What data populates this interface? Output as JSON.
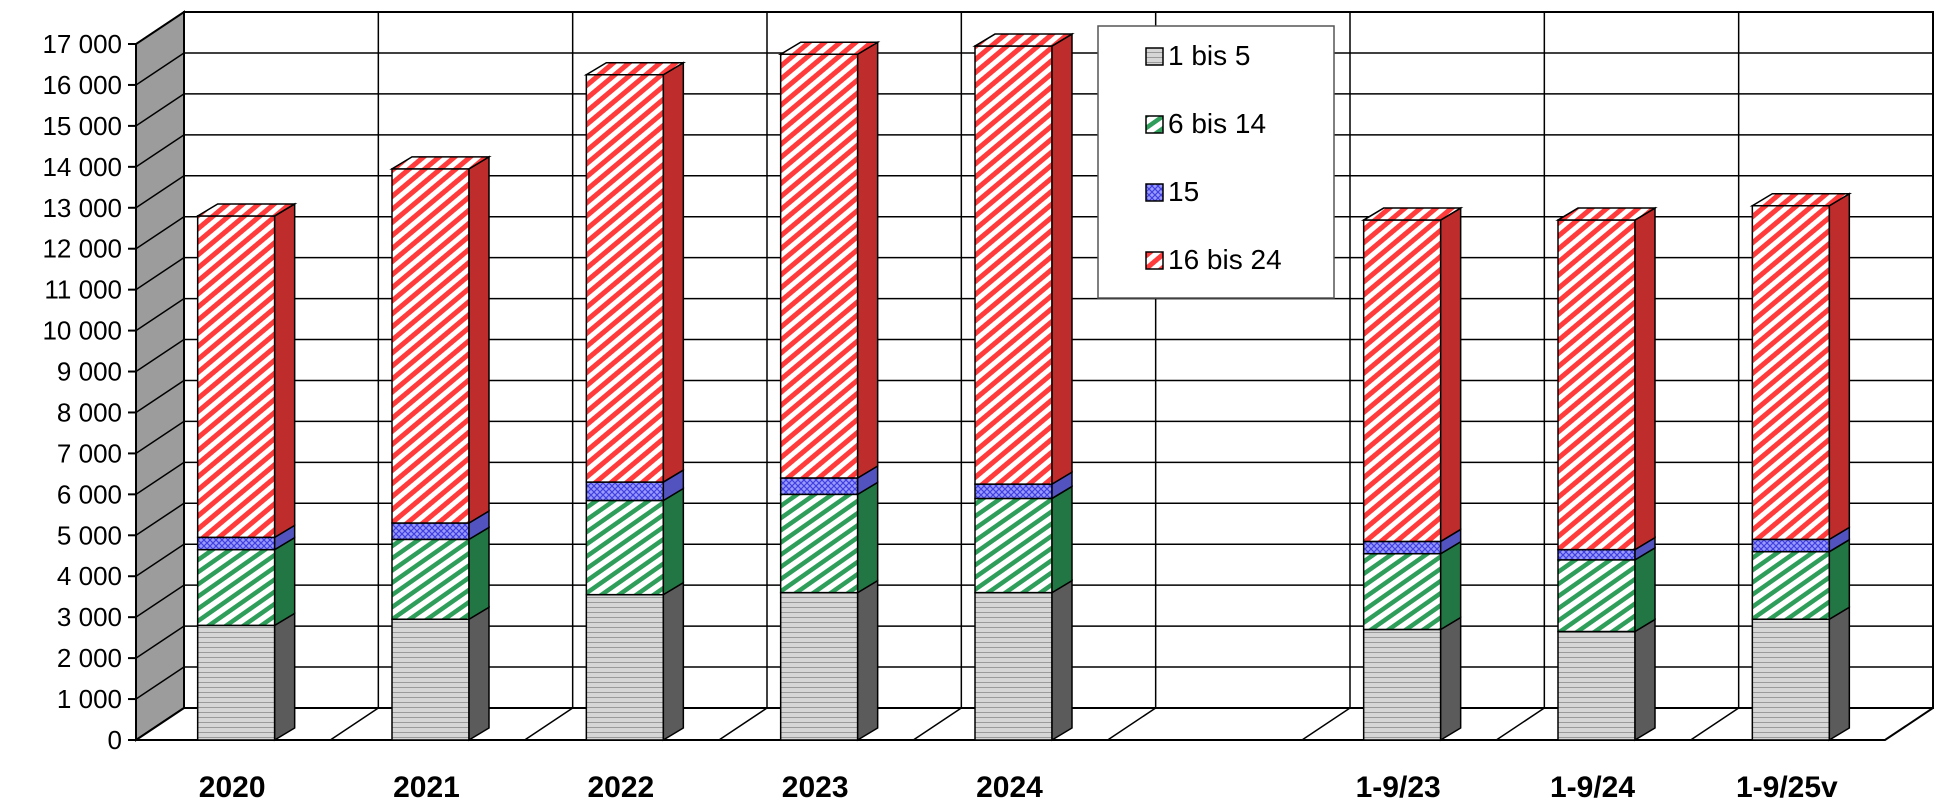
{
  "chart_data": {
    "type": "bar",
    "stacked": true,
    "style": "3d",
    "categories": [
      "2020",
      "2021",
      "2022",
      "2023",
      "2024",
      "",
      "1-9/23",
      "1-9/24",
      "1-9/25v"
    ],
    "series": [
      {
        "name": "1 bis 5",
        "color": "#c8c8c8",
        "values": [
          2800,
          2950,
          3550,
          3600,
          3600,
          null,
          2700,
          2650,
          2950
        ]
      },
      {
        "name": "6 bis 14",
        "color": "#2e9e5a",
        "values": [
          1850,
          1950,
          2300,
          2400,
          2300,
          null,
          1850,
          1750,
          1650
        ]
      },
      {
        "name": "15",
        "color": "#6f6fff",
        "values": [
          300,
          400,
          450,
          400,
          350,
          null,
          300,
          250,
          300
        ]
      },
      {
        "name": "16 bis 24",
        "color": "#ff3b3b",
        "values": [
          7850,
          8650,
          9950,
          10350,
          10700,
          null,
          7850,
          8050,
          8150
        ]
      }
    ],
    "ylim": [
      0,
      17000
    ],
    "yticks": [
      "0",
      "1 000",
      "2 000",
      "3 000",
      "4 000",
      "5 000",
      "6 000",
      "7 000",
      "8 000",
      "9 000",
      "10 000",
      "11 000",
      "12 000",
      "13 000",
      "14 000",
      "15 000",
      "16 000",
      "17 000"
    ],
    "grid": true,
    "legend_position": "top-center"
  }
}
